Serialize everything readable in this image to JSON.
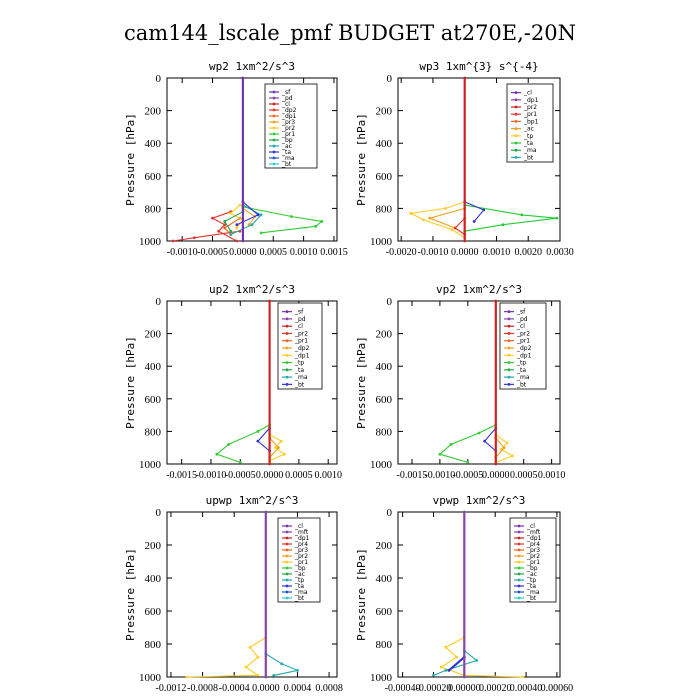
{
  "figure": {
    "title": "cam144_lscale_pmf  BUDGET at270E,-20N"
  },
  "chart_data": [
    {
      "type": "line",
      "title": "wp2   1xm^2/s^3",
      "ylabel": "Pressure [hPa]",
      "ylim": [
        1000,
        0
      ],
      "yticks": [
        "0",
        "200",
        "400",
        "600",
        "800",
        "1000"
      ],
      "xlim": [
        -0.00125,
        0.00155
      ],
      "xtick_values": [
        -0.001,
        -0.0005,
        0.0,
        0.0005,
        0.001,
        0.0015
      ],
      "xtick_labels": [
        "-0.0010",
        "-0.0005",
        "0.0000",
        "0.0005",
        "0.0010",
        "0.0015"
      ],
      "x_axis": "bottom",
      "legend_position": "top-right",
      "legend": [
        "_sf",
        "_pd",
        "_cl",
        "_dp2",
        "_dp1",
        "_pr3",
        "_pr2",
        "_pr1",
        "_bp",
        "_ac",
        "_ta",
        "_ma",
        "_bt"
      ],
      "series": [
        {
          "legend_index": 2,
          "color": "#dd3333",
          "values": [
            [
              -5e-05,
              940
            ],
            [
              -0.0008,
              980
            ],
            [
              -0.00115,
              1000
            ]
          ]
        },
        {
          "legend_index": 3,
          "color": "#e8332a",
          "values": [
            [
              -0.0002,
              820
            ],
            [
              -0.0005,
              860
            ],
            [
              -0.0003,
              900
            ],
            [
              -0.0004,
              940
            ],
            [
              -0.0001,
              1000
            ]
          ]
        },
        {
          "legend_index": 4,
          "color": "#ee6622",
          "values": [
            [
              -5e-05,
              860
            ],
            [
              -0.0003,
              920
            ],
            [
              -0.0002,
              960
            ]
          ]
        },
        {
          "legend_index": 5,
          "color": "#f0a020",
          "values": [
            [
              0.0,
              800
            ],
            [
              0.0002,
              850
            ],
            [
              0.0001,
              900
            ]
          ]
        },
        {
          "legend_index": 6,
          "color": "#ffcc22",
          "values": [
            [
              -5e-05,
              780
            ],
            [
              -0.0002,
              830
            ],
            [
              0.0,
              870
            ],
            [
              -0.0001,
              920
            ]
          ]
        },
        {
          "legend_index": 7,
          "color": "#33cc33",
          "values": [
            [
              0.0,
              790
            ],
            [
              0.0008,
              850
            ],
            [
              0.0013,
              880
            ],
            [
              0.0012,
              910
            ],
            [
              0.0003,
              950
            ]
          ]
        },
        {
          "legend_index": 8,
          "color": "#22aa44",
          "values": [
            [
              0.0,
              820
            ],
            [
              -0.0003,
              880
            ],
            [
              -0.0002,
              940
            ]
          ]
        },
        {
          "legend_index": 9,
          "color": "#22aaaa",
          "values": [
            [
              0.0,
              780
            ],
            [
              0.0003,
              840
            ],
            [
              0.00015,
              900
            ],
            [
              -0.0002,
              960
            ]
          ]
        },
        {
          "legend_index": 10,
          "color": "#3333dd",
          "values": [
            [
              0.0,
              760
            ],
            [
              0.00025,
              840
            ],
            [
              -0.0001,
              900
            ]
          ]
        },
        {
          "legend_index": 0,
          "color": "#7733aa",
          "values": [
            [
              0.0,
              0
            ],
            [
              0.0,
              1000
            ]
          ]
        }
      ]
    },
    {
      "type": "line",
      "title": "wp3   1xm^{3} s^{-4}",
      "ylabel": "Pressure [hPa]",
      "ylim": [
        1000,
        0
      ],
      "yticks": [
        "0",
        "200",
        "400",
        "600",
        "800",
        "1000"
      ],
      "xlim": [
        -0.0021,
        0.003
      ],
      "xtick_values": [
        -0.002,
        -0.001,
        0.0,
        0.001,
        0.002,
        0.003
      ],
      "xtick_labels": [
        "-0.0020",
        "-0.0010",
        "0.0000",
        "0.0010",
        "0.0020",
        "0.0030"
      ],
      "x_axis": "bottom",
      "legend_position": "top-right",
      "legend": [
        "_cl",
        "_dp1",
        "_pr2",
        "_pr1",
        "_bp1",
        "_ac",
        "_tp",
        "_ta",
        "_ma",
        "_bt"
      ],
      "series": [
        {
          "legend_index": 2,
          "color": "#ffcc22",
          "values": [
            [
              0.0,
              760
            ],
            [
              -0.0006,
              800
            ],
            [
              -0.0017,
              830
            ],
            [
              -0.0013,
              870
            ],
            [
              -0.0004,
              930
            ],
            [
              0.0,
              980
            ]
          ]
        },
        {
          "legend_index": 3,
          "color": "#f0a020",
          "values": [
            [
              0.0,
              800
            ],
            [
              -0.0011,
              860
            ],
            [
              -0.0003,
              920
            ]
          ]
        },
        {
          "legend_index": 5,
          "color": "#22cc33",
          "values": [
            [
              0.0,
              780
            ],
            [
              0.0018,
              840
            ],
            [
              0.0029,
              860
            ],
            [
              0.0012,
              900
            ],
            [
              0.0,
              940
            ]
          ]
        },
        {
          "legend_index": 7,
          "color": "#3333dd",
          "values": [
            [
              0.0,
              760
            ],
            [
              0.0006,
              810
            ],
            [
              0.0003,
              880
            ]
          ]
        },
        {
          "legend_index": 1,
          "color": "#e8332a",
          "values": [
            [
              0.0,
              860
            ],
            [
              -0.0003,
              920
            ],
            [
              0.0,
              960
            ]
          ]
        },
        {
          "legend_index": 0,
          "color": "#cc2222",
          "values": [
            [
              0.0,
              0
            ],
            [
              0.0,
              1000
            ]
          ]
        }
      ]
    },
    {
      "type": "line",
      "title": "up2   1xm^2/s^3",
      "ylabel": "Pressure [hPa]",
      "ylim": [
        1000,
        0
      ],
      "yticks": [
        "0",
        "200",
        "400",
        "600",
        "800",
        "1000"
      ],
      "xlim": [
        -0.00175,
        0.00115
      ],
      "xtick_values": [
        -0.0015,
        -0.001,
        -0.0005,
        0.0,
        0.0005,
        0.001
      ],
      "xtick_labels": [
        "-0.0015",
        "-0.0010",
        "-0.0005",
        "0.0000",
        "0.0005",
        "0.0010"
      ],
      "x_axis": "bottom",
      "legend_position": "top-right",
      "legend": [
        "_sf",
        "_pd",
        "_cl",
        "_pr2",
        "_pr1",
        "_dp2",
        "_dp1",
        "_tp",
        "_ta",
        "_ma",
        "_bt"
      ],
      "series": [
        {
          "legend_index": 5,
          "color": "#33cc33",
          "values": [
            [
              0.0,
              760
            ],
            [
              -0.0002,
              800
            ],
            [
              -0.0007,
              880
            ],
            [
              -0.0009,
              940
            ],
            [
              -0.0005,
              990
            ]
          ]
        },
        {
          "legend_index": 3,
          "color": "#ffcc22",
          "values": [
            [
              0.0,
              820
            ],
            [
              0.0002,
              860
            ],
            [
              0.0001,
              900
            ],
            [
              0.00025,
              940
            ],
            [
              0.0,
              980
            ]
          ]
        },
        {
          "legend_index": 4,
          "color": "#f0a020",
          "values": [
            [
              0.0,
              840
            ],
            [
              0.00015,
              900
            ],
            [
              0.0,
              960
            ]
          ]
        },
        {
          "legend_index": 7,
          "color": "#3333dd",
          "values": [
            [
              0.0,
              780
            ],
            [
              -0.0002,
              860
            ],
            [
              0.0,
              920
            ]
          ]
        },
        {
          "legend_index": 0,
          "color": "#cc2222",
          "values": [
            [
              0.0,
              0
            ],
            [
              0.0,
              1000
            ]
          ]
        }
      ]
    },
    {
      "type": "line",
      "title": "vp2   1xm^2/s^3",
      "ylabel": "Pressure [hPa]",
      "ylim": [
        1000,
        0
      ],
      "yticks": [
        "0",
        "200",
        "400",
        "600",
        "800",
        "1000"
      ],
      "xlim": [
        -0.00175,
        0.00115
      ],
      "xtick_values": [
        -0.0015,
        -0.001,
        -0.0005,
        0.0,
        0.0005,
        0.001
      ],
      "xtick_labels": [
        "-0.0015",
        "-0.0010",
        "-0.0005",
        "0.0000",
        "0.0005",
        "0.0010"
      ],
      "x_axis": "bottom",
      "legend_position": "top-right",
      "legend": [
        "_sf",
        "_pd",
        "_cl",
        "_pr2",
        "_pr1",
        "_dp2",
        "_dp1",
        "_tp",
        "_ta",
        "_ma",
        "_bt"
      ],
      "series": [
        {
          "legend_index": 5,
          "color": "#33cc33",
          "values": [
            [
              0.0,
              760
            ],
            [
              -0.0003,
              810
            ],
            [
              -0.0008,
              880
            ],
            [
              -0.001,
              940
            ],
            [
              -0.0005,
              990
            ]
          ]
        },
        {
          "legend_index": 3,
          "color": "#ffcc22",
          "values": [
            [
              0.0,
              820
            ],
            [
              0.0002,
              870
            ],
            [
              0.0001,
              910
            ],
            [
              0.0003,
              950
            ],
            [
              0.0,
              990
            ]
          ]
        },
        {
          "legend_index": 4,
          "color": "#f0a020",
          "values": [
            [
              0.0,
              840
            ],
            [
              0.00015,
              900
            ],
            [
              0.0,
              960
            ]
          ]
        },
        {
          "legend_index": 7,
          "color": "#3333dd",
          "values": [
            [
              0.0,
              780
            ],
            [
              -0.0002,
              860
            ],
            [
              0.0,
              920
            ]
          ]
        },
        {
          "legend_index": 0,
          "color": "#cc2222",
          "values": [
            [
              0.0,
              0
            ],
            [
              0.0,
              1000
            ]
          ]
        }
      ]
    },
    {
      "type": "line",
      "title": "upwp   1xm^2/s^3",
      "ylabel": "Pressure [hPa]",
      "ylim": [
        1000,
        0
      ],
      "yticks": [
        "0",
        "200",
        "400",
        "600",
        "800",
        "1000"
      ],
      "xlim": [
        -0.00125,
        0.0009
      ],
      "xtick_values": [
        -0.0012,
        -0.0008,
        -0.0004,
        0.0,
        0.0004,
        0.0008
      ],
      "xtick_labels": [
        "-0.0012",
        "-0.0008",
        "-0.0004",
        "0.0000",
        "0.0004",
        "0.0008"
      ],
      "x_axis": "bottom",
      "legend_position": "top-right",
      "legend": [
        "_cl",
        "_mft",
        "_dp1",
        "_pr4",
        "_pr3",
        "_pr2",
        "_pr1",
        "_bp",
        "_ac",
        "_tp",
        "_ta",
        "_ma",
        "_bt"
      ],
      "series": [
        {
          "legend_index": 5,
          "color": "#ffcc22",
          "values": [
            [
              0.0,
              760
            ],
            [
              -0.0002,
              820
            ],
            [
              -0.0001,
              880
            ],
            [
              -0.00025,
              940
            ],
            [
              -0.0001,
              990
            ],
            [
              -0.001,
              1000
            ]
          ]
        },
        {
          "legend_index": 10,
          "color": "#22aaaa",
          "values": [
            [
              0.0,
              860
            ],
            [
              0.0002,
              920
            ],
            [
              0.0004,
              960
            ],
            [
              0.0001,
              990
            ]
          ]
        },
        {
          "legend_index": 2,
          "color": "#8844aa",
          "values": [
            [
              0.0,
              0
            ],
            [
              0.0,
              1000
            ]
          ]
        }
      ]
    },
    {
      "type": "line",
      "title": "vpwp   1xm^2/s^3",
      "ylabel": "Pressure [hPa]",
      "ylim": [
        1000,
        0
      ],
      "yticks": [
        "0",
        "200",
        "400",
        "600",
        "800",
        "1000"
      ],
      "xlim": [
        -0.00043,
        0.00062
      ],
      "xtick_values": [
        -0.0004,
        -0.0002,
        0.0,
        0.0002,
        0.0004,
        0.0006
      ],
      "xtick_labels": [
        "-0.00040",
        "-0.00020",
        "0.00000",
        "0.00020",
        "0.00040",
        "0.00060"
      ],
      "x_axis": "bottom",
      "legend_position": "top-right",
      "legend": [
        "_cl",
        "_mft",
        "_dp1",
        "_pr4",
        "_pr3",
        "_pr2",
        "_pr1",
        "_bp",
        "_ac",
        "_tp",
        "_ta",
        "_ma",
        "_bt"
      ],
      "series": [
        {
          "legend_index": 5,
          "color": "#ffcc22",
          "values": [
            [
              0.0,
              760
            ],
            [
              -0.00012,
              820
            ],
            [
              -5e-05,
              880
            ],
            [
              -0.00015,
              940
            ],
            [
              0.0,
              990
            ],
            [
              0.00038,
              1000
            ]
          ]
        },
        {
          "legend_index": 10,
          "color": "#22aaaa",
          "values": [
            [
              0.0,
              840
            ],
            [
              8e-05,
              900
            ],
            [
              -0.00012,
              960
            ],
            [
              -0.0002,
              990
            ]
          ]
        },
        {
          "legend_index": 9,
          "color": "#3333dd",
          "values": [
            [
              0.0,
              880
            ],
            [
              -0.0001,
              960
            ]
          ]
        },
        {
          "legend_index": 2,
          "color": "#8844aa",
          "values": [
            [
              0.0,
              0
            ],
            [
              0.0,
              1000
            ]
          ]
        }
      ]
    }
  ]
}
